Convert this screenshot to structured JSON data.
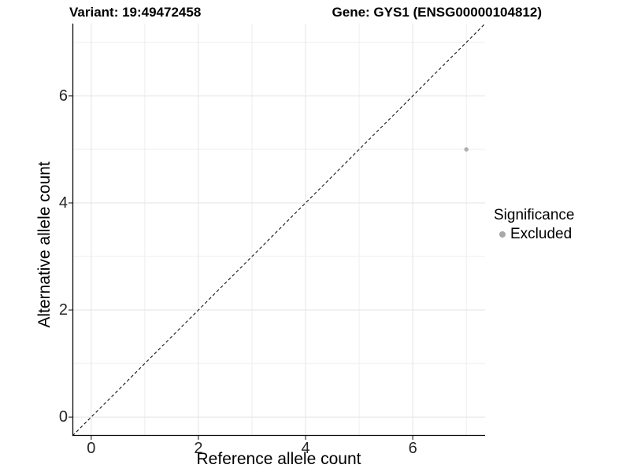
{
  "chart_data": {
    "type": "scatter",
    "title_left": "Variant: 19:49472458",
    "title_right": "Gene: GYS1 (ENSG00000104812)",
    "xlabel": "Reference allele count",
    "ylabel": "Alternative allele count",
    "xlim": [
      -0.35,
      7.35
    ],
    "ylim": [
      -0.35,
      7.35
    ],
    "x_ticks": [
      0,
      2,
      4,
      6
    ],
    "y_ticks": [
      0,
      2,
      4,
      6
    ],
    "grid_major": [
      0,
      2,
      4,
      6
    ],
    "grid_minor": [
      1,
      3,
      5,
      7
    ],
    "grid_on": true,
    "reference_line": {
      "kind": "identity y=x",
      "style": "dashed"
    },
    "points": [
      {
        "x": 7,
        "y": 5,
        "series": "Excluded"
      }
    ],
    "legend": {
      "title": "Significance",
      "position": "right",
      "entries": [
        {
          "label": "Excluded",
          "color": "#a8a8a8"
        }
      ]
    }
  },
  "colors": {
    "background": "#ffffff",
    "grid_major": "#e6e6e6",
    "grid_minor": "#eeeeee",
    "axis_line": "#0a0a0a",
    "tick_mark": "#333333",
    "identity_line": "#111111",
    "point": "#b0b0b0",
    "tick_label": "#262626",
    "text": "#000000"
  }
}
